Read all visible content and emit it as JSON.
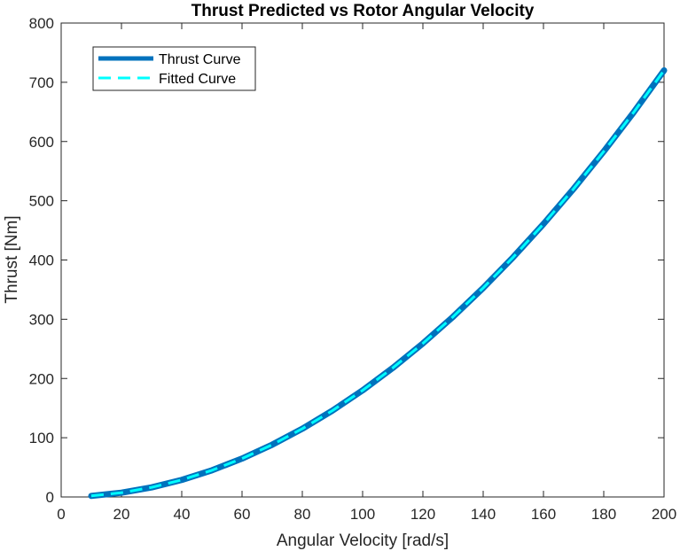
{
  "chart_data": {
    "type": "line",
    "title": "Thrust Predicted vs Rotor Angular Velocity",
    "xlabel": "Angular Velocity [rad/s]",
    "ylabel": "Thrust [Nm]",
    "xlim": [
      0,
      200
    ],
    "ylim": [
      0,
      800
    ],
    "x_ticks": [
      0,
      20,
      40,
      60,
      80,
      100,
      120,
      140,
      160,
      180,
      200
    ],
    "y_ticks": [
      0,
      100,
      200,
      300,
      400,
      500,
      600,
      700,
      800
    ],
    "grid": false,
    "legend_position": "top-left",
    "x": [
      10,
      20,
      30,
      40,
      50,
      60,
      70,
      80,
      90,
      100,
      110,
      120,
      130,
      140,
      150,
      160,
      170,
      180,
      190,
      200
    ],
    "series": [
      {
        "name": "Thrust Curve",
        "color": "#0072BD",
        "style": "solid",
        "values": [
          1.8,
          7.2,
          16.2,
          28.8,
          45,
          64.8,
          88.2,
          115.2,
          145.8,
          180,
          217.8,
          259.2,
          304.2,
          352.8,
          405,
          460.8,
          520.2,
          583.2,
          649.8,
          720
        ]
      },
      {
        "name": "Fitted Curve",
        "color": "#00FFFF",
        "style": "dashed",
        "values": [
          1.8,
          7.2,
          16.2,
          28.8,
          45,
          64.8,
          88.2,
          115.2,
          145.8,
          180,
          217.8,
          259.2,
          304.2,
          352.8,
          405,
          460.8,
          520.2,
          583.2,
          649.8,
          720
        ]
      }
    ]
  }
}
